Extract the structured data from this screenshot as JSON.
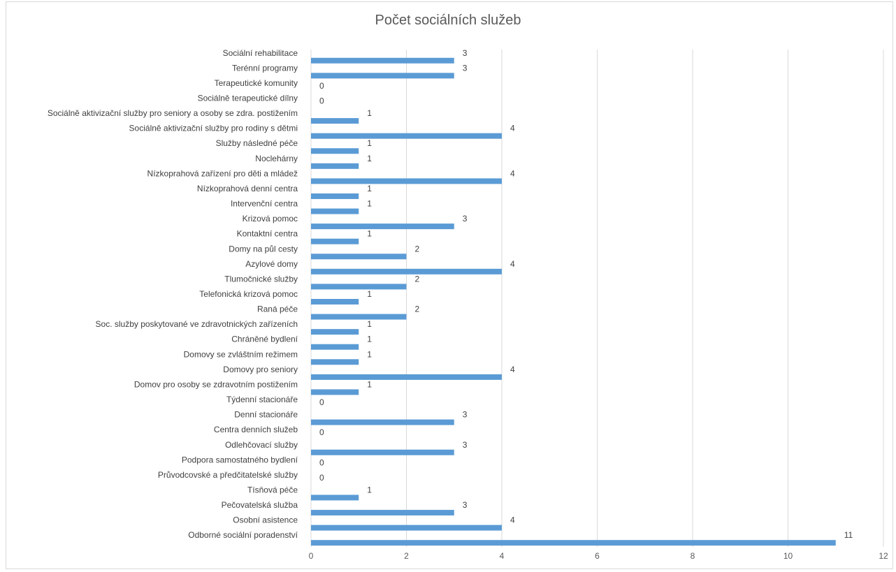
{
  "chart_data": {
    "type": "bar",
    "orientation": "horizontal",
    "title": "Počet sociálních služeb",
    "xlabel": "",
    "ylabel": "",
    "xlim": [
      0,
      12
    ],
    "x_ticks": [
      "0",
      "2",
      "4",
      "6",
      "8",
      "10",
      "12"
    ],
    "grid": true,
    "legend": "none",
    "bar_color": "#5b9bd5",
    "categories": [
      "Sociální rehabilitace",
      "Terénní programy",
      "Terapeutické komunity",
      "Sociálně terapeutické dílny",
      "Sociálně aktivizační služby pro seniory a osoby se zdra. postižením",
      "Sociálně aktivizační služby pro rodiny s dětmi",
      "Služby následné péče",
      "Noclehárny",
      "Nízkoprahová zařízení pro děti a mládež",
      "Nízkoprahová denní centra",
      "Intervenční centra",
      "Krizová pomoc",
      "Kontaktní centra",
      "Domy na půl cesty",
      "Azylové domy",
      "Tlumočnické služby",
      "Telefonická krizová pomoc",
      "Raná péče",
      "Soc. služby poskytované ve zdravotnických zařízeních",
      "Chráněné bydlení",
      "Domovy se zvláštním režimem",
      "Domovy pro seniory",
      "Domov pro osoby se zdravotním postižením",
      "Týdenní stacionáře",
      "Denní stacionáře",
      "Centra denních služeb",
      "Odlehčovací služby",
      "Podpora samostatného bydlení",
      "Průvodcovské a předčitatelské služby",
      "Tísňová péče",
      "Pečovatelská služba",
      "Osobní asistence",
      "Odborné sociální poradenství"
    ],
    "values": [
      3,
      3,
      0,
      0,
      1,
      4,
      1,
      1,
      4,
      1,
      1,
      3,
      1,
      2,
      4,
      2,
      1,
      2,
      1,
      1,
      1,
      4,
      1,
      0,
      3,
      0,
      3,
      0,
      0,
      1,
      3,
      4,
      11
    ]
  }
}
